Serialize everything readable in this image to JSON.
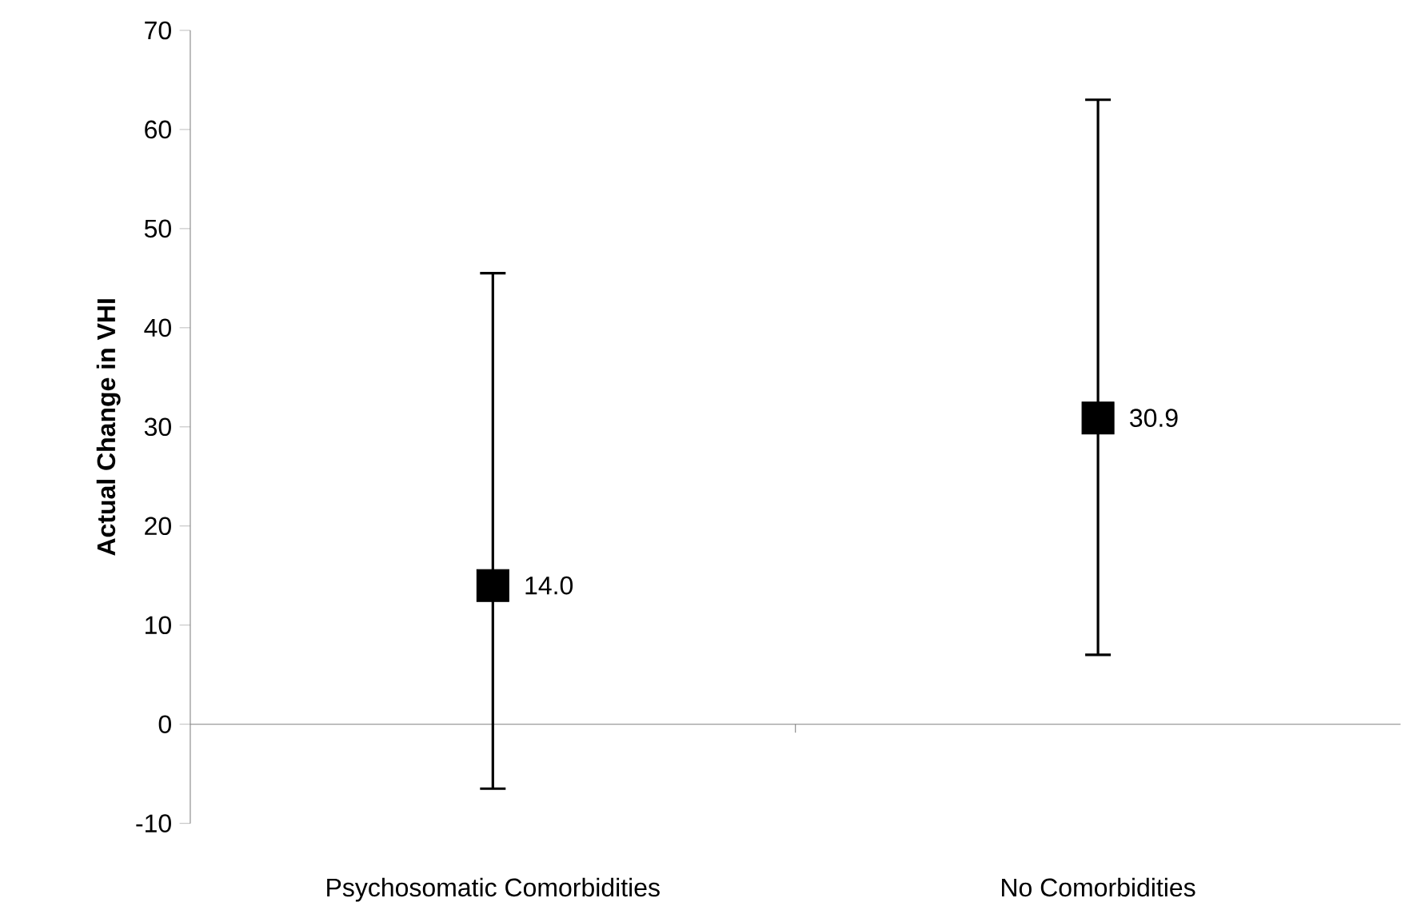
{
  "chart_data": {
    "type": "scatter",
    "ylabel": "Actual Change in VHI",
    "categories": [
      "Psychosomatic Comorbidities",
      "No Comorbidities"
    ],
    "series": [
      {
        "color": "#000000",
        "values": [
          14.0,
          30.9
        ],
        "errors": [
          [
            -6.5,
            45.5
          ],
          [
            7.0,
            63.0
          ]
        ],
        "value_labels": [
          "14.0",
          "30.9"
        ]
      }
    ],
    "ylim": [
      -10,
      70
    ],
    "yticks": [
      -10,
      0,
      10,
      20,
      30,
      40,
      50,
      60,
      70
    ],
    "marker": "square"
  }
}
